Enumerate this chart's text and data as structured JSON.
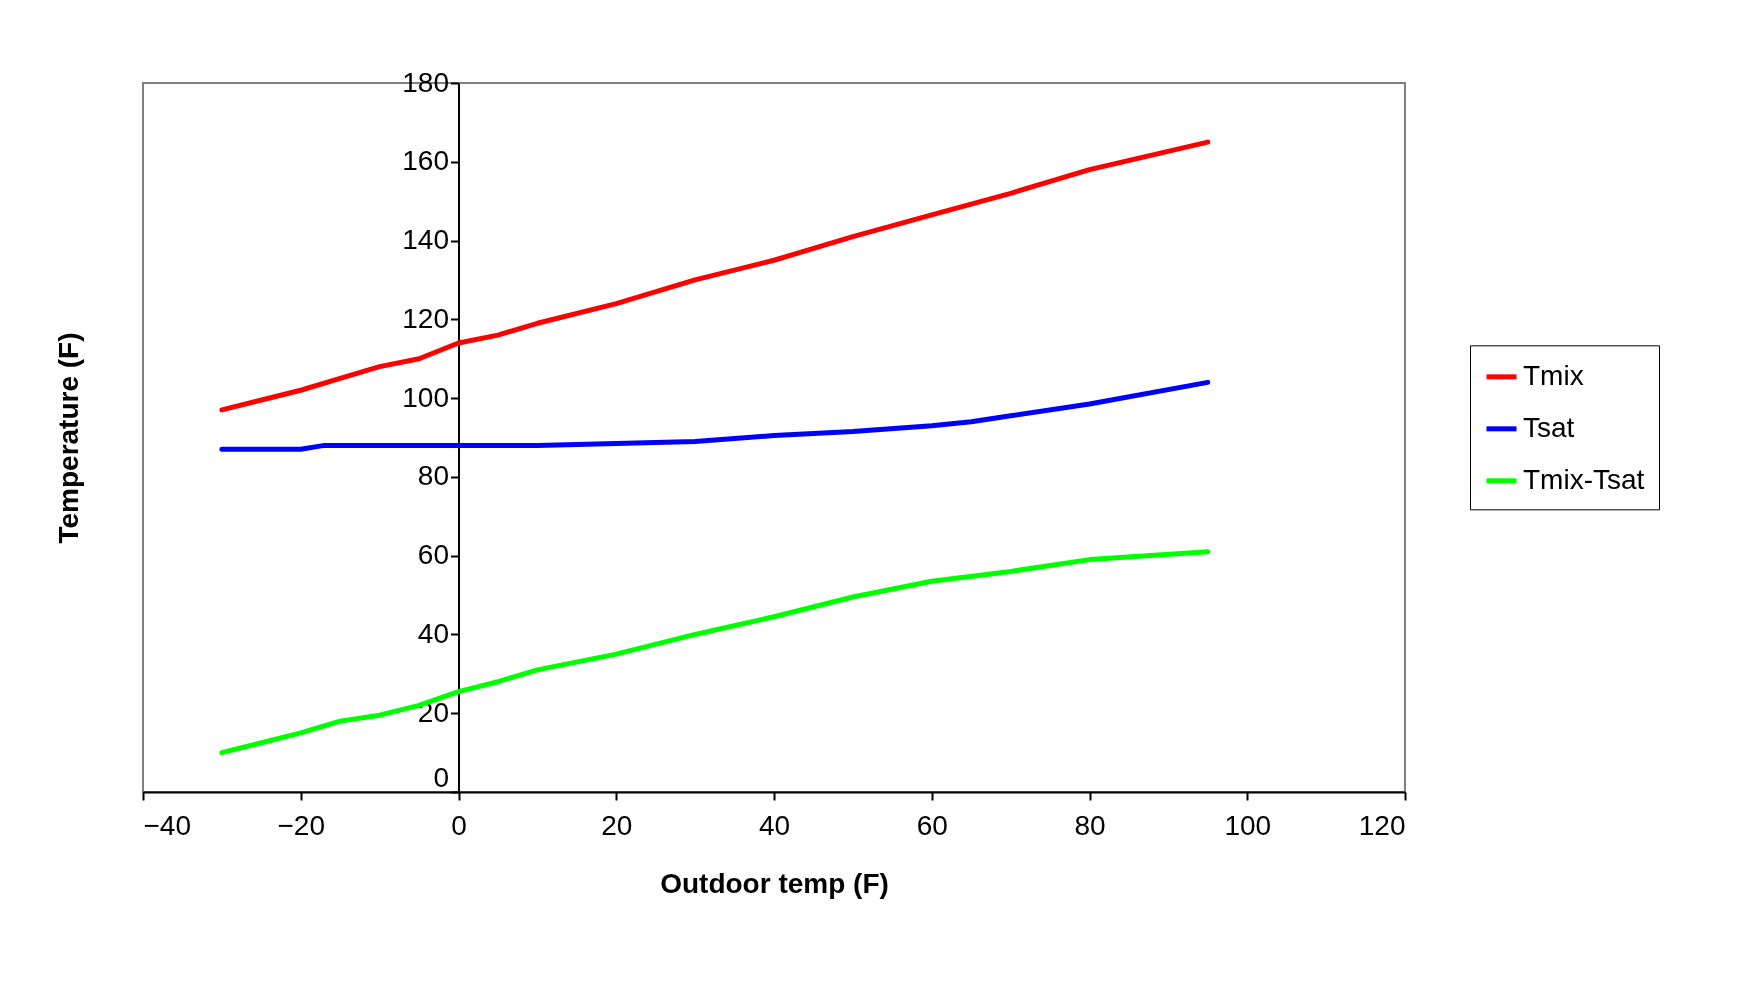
{
  "chart_data": {
    "type": "line",
    "xlabel": "Outdoor temp (F)",
    "ylabel": "Temperature (F)",
    "xlim": [
      -40,
      120
    ],
    "xticks": [
      -40,
      -20,
      0,
      20,
      40,
      60,
      80,
      100,
      120
    ],
    "ylim": [
      0,
      180
    ],
    "yticks": [
      0,
      20,
      40,
      60,
      80,
      100,
      120,
      140,
      160,
      180
    ],
    "grid": false,
    "legend": "right",
    "marker": "none",
    "line_style": "solid",
    "series": [
      {
        "name": "Tmix",
        "color": "#ff0000",
        "x": [
          -30,
          -20,
          -15,
          -10,
          -5,
          0,
          5,
          10,
          20,
          30,
          40,
          50,
          60,
          70,
          80,
          95
        ],
        "values": [
          97,
          102,
          105,
          108,
          110,
          114,
          116,
          119,
          124,
          130,
          135,
          141,
          146.5,
          152,
          158,
          165
        ]
      },
      {
        "name": "Tsat",
        "color": "#0000ff",
        "x": [
          -30,
          -20,
          -17,
          0,
          10,
          20,
          30,
          40,
          50,
          60,
          65,
          70,
          80,
          95
        ],
        "values": [
          87,
          87,
          88,
          88,
          88,
          88.5,
          89,
          90.5,
          91.5,
          93,
          94,
          95.5,
          98.5,
          104
        ]
      },
      {
        "name": "Tmix-Tsat",
        "color": "#00ff00",
        "x": [
          -30,
          -20,
          -15,
          -10,
          -5,
          0,
          5,
          10,
          20,
          30,
          40,
          50,
          60,
          70,
          80,
          95
        ],
        "values": [
          10,
          15,
          18,
          19.5,
          22,
          25.5,
          28,
          31,
          35,
          40,
          44.5,
          49.5,
          53.5,
          56,
          59,
          61
        ]
      }
    ]
  }
}
